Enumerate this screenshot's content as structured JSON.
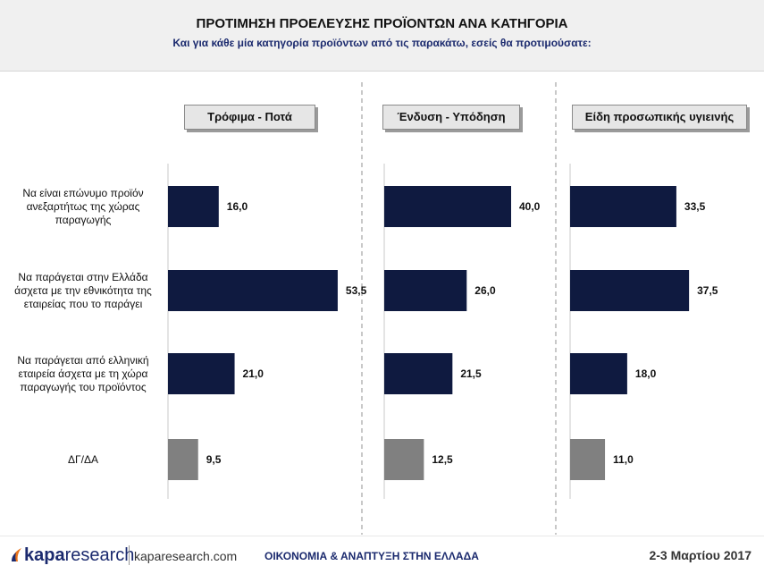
{
  "header": {
    "title": "ΠΡΟΤΙΜΗΣΗ ΠΡΟΕΛΕΥΣΗΣ ΠΡΟΪΟΝΤΩΝ ΑΝΑ ΚΑΤΗΓΟΡΙΑ",
    "subtitle": "Και για κάθε μία κατηγορία προϊόντων από τις παρακάτω, εσείς θα προτιμούσατε:"
  },
  "colors": {
    "bar_main": "#0f1a40",
    "bar_dk": "#808080",
    "title_blue": "#1b2a6e"
  },
  "chart_data": {
    "type": "bar",
    "orientation": "horizontal",
    "categories": [
      "Να είναι επώνυμο προϊόν ανεξαρτήτως της χώρας παραγωγής",
      "Να παράγεται στην Ελλάδα άσχετα με την εθνικότητα της εταιρείας που το παράγει",
      "Να παράγεται από ελληνική εταιρεία άσχετα με τη χώρα παραγωγής του προϊόντος",
      "ΔΓ/ΔΑ"
    ],
    "category_lines": [
      [
        "Να είναι επώνυμο προϊόν",
        "ανεξαρτήτως της χώρας",
        "παραγωγής"
      ],
      [
        "Να παράγεται στην Ελλάδα",
        "άσχετα με την εθνικότητα της",
        "εταιρείας που το παράγει"
      ],
      [
        "Να παράγεται από ελληνική",
        "εταιρεία άσχετα με τη χώρα",
        "παραγωγής του προϊόντος"
      ],
      [
        "ΔΓ/ΔΑ"
      ]
    ],
    "series": [
      {
        "name": "Τρόφιμα - Ποτά",
        "values": [
          16.0,
          53.5,
          21.0,
          9.5
        ],
        "labels": [
          "16,0",
          "53,5",
          "21,0",
          "9,5"
        ]
      },
      {
        "name": "Ένδυση - Υπόδηση",
        "values": [
          40.0,
          26.0,
          21.5,
          12.5
        ],
        "labels": [
          "40,0",
          "26,0",
          "21,5",
          "12,5"
        ]
      },
      {
        "name": "Είδη προσωπικής υγιεινής",
        "values": [
          33.5,
          37.5,
          18.0,
          11.0
        ],
        "labels": [
          "33,5",
          "37,5",
          "18,0",
          "11,0"
        ]
      }
    ],
    "xlim": [
      0,
      60
    ],
    "grid": false,
    "legend": "none"
  },
  "footer": {
    "logo_bold": "kapa",
    "logo_light": "research",
    "site": "kaparesearch.com",
    "center_text": "ΟΙΚΟΝΟΜΙΑ & ΑΝΑΠΤΥΞΗ ΣΤΗΝ ΕΛΛΑΔΑ",
    "date": "2-3 Μαρτίου 2017"
  }
}
